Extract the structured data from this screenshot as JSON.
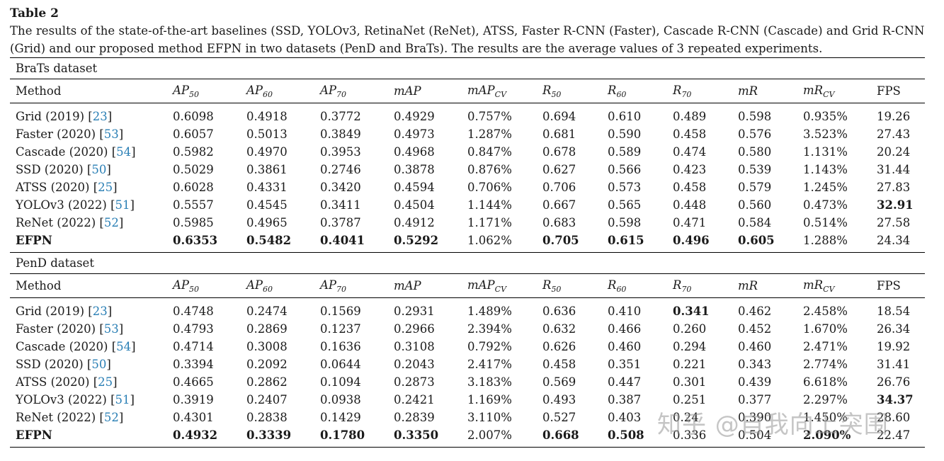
{
  "title": "Table 2",
  "caption": "The results of the state-of-the-art baselines (SSD, YOLOv3, RetinaNet (ReNet), ATSS, Faster R-CNN (Faster), Cascade R-CNN (Cascade) and Grid R-CNN (Grid) and our proposed method EFPN in two datasets (PenD and BraTs). The results are the average values of 3 repeated experiments.",
  "columns": [
    {
      "main": "Method",
      "sub": "",
      "math": false
    },
    {
      "main": "AP",
      "sub": "50",
      "math": true
    },
    {
      "main": "AP",
      "sub": "60",
      "math": true
    },
    {
      "main": "AP",
      "sub": "70",
      "math": true
    },
    {
      "main": "mAP",
      "sub": "",
      "math": true
    },
    {
      "main": "mAP",
      "sub": "CV",
      "math": true
    },
    {
      "main": "R",
      "sub": "50",
      "math": true
    },
    {
      "main": "R",
      "sub": "60",
      "math": true
    },
    {
      "main": "R",
      "sub": "70",
      "math": true
    },
    {
      "main": "mR",
      "sub": "",
      "math": true
    },
    {
      "main": "mR",
      "sub": "CV",
      "math": true
    },
    {
      "main": "FPS",
      "sub": "",
      "math": false
    }
  ],
  "sections": [
    {
      "label": "BraTs dataset",
      "rows": [
        {
          "name": "Grid (2019)",
          "cite": "23",
          "values": [
            "0.6098",
            "0.4918",
            "0.3772",
            "0.4929",
            "0.757%",
            "0.694",
            "0.610",
            "0.489",
            "0.598",
            "0.935%",
            "19.26"
          ],
          "bold": []
        },
        {
          "name": "Faster (2020)",
          "cite": "53",
          "values": [
            "0.6057",
            "0.5013",
            "0.3849",
            "0.4973",
            "1.287%",
            "0.681",
            "0.590",
            "0.458",
            "0.576",
            "3.523%",
            "27.43"
          ],
          "bold": []
        },
        {
          "name": "Cascade (2020)",
          "cite": "54",
          "values": [
            "0.5982",
            "0.4970",
            "0.3953",
            "0.4968",
            "0.847%",
            "0.678",
            "0.589",
            "0.474",
            "0.580",
            "1.131%",
            "20.24"
          ],
          "bold": []
        },
        {
          "name": "SSD (2020)",
          "cite": "50",
          "values": [
            "0.5029",
            "0.3861",
            "0.2746",
            "0.3878",
            "0.876%",
            "0.627",
            "0.566",
            "0.423",
            "0.539",
            "1.143%",
            "31.44"
          ],
          "bold": []
        },
        {
          "name": "ATSS (2020)",
          "cite": "25",
          "values": [
            "0.6028",
            "0.4331",
            "0.3420",
            "0.4594",
            "0.706%",
            "0.706",
            "0.573",
            "0.458",
            "0.579",
            "1.245%",
            "27.83"
          ],
          "bold": []
        },
        {
          "name": "YOLOv3 (2022)",
          "cite": "51",
          "values": [
            "0.5557",
            "0.4545",
            "0.3411",
            "0.4504",
            "1.144%",
            "0.667",
            "0.565",
            "0.448",
            "0.560",
            "0.473%",
            "32.91"
          ],
          "bold": [
            10
          ]
        },
        {
          "name": "ReNet (2022)",
          "cite": "52",
          "values": [
            "0.5985",
            "0.4965",
            "0.3787",
            "0.4912",
            "1.171%",
            "0.683",
            "0.598",
            "0.471",
            "0.584",
            "0.514%",
            "27.58"
          ],
          "bold": []
        },
        {
          "name": "EFPN",
          "cite": "",
          "nameBold": true,
          "values": [
            "0.6353",
            "0.5482",
            "0.4041",
            "0.5292",
            "1.062%",
            "0.705",
            "0.615",
            "0.496",
            "0.605",
            "1.288%",
            "24.34"
          ],
          "bold": [
            0,
            1,
            2,
            3,
            5,
            6,
            7,
            8
          ]
        }
      ]
    },
    {
      "label": "PenD dataset",
      "rows": [
        {
          "name": "Grid (2019)",
          "cite": "23",
          "values": [
            "0.4748",
            "0.2474",
            "0.1569",
            "0.2931",
            "1.489%",
            "0.636",
            "0.410",
            "0.341",
            "0.462",
            "2.458%",
            "18.54"
          ],
          "bold": [
            7
          ]
        },
        {
          "name": "Faster (2020)",
          "cite": "53",
          "values": [
            "0.4793",
            "0.2869",
            "0.1237",
            "0.2966",
            "2.394%",
            "0.632",
            "0.466",
            "0.260",
            "0.452",
            "1.670%",
            "26.34"
          ],
          "bold": []
        },
        {
          "name": "Cascade (2020)",
          "cite": "54",
          "values": [
            "0.4714",
            "0.3008",
            "0.1636",
            "0.3108",
            "0.792%",
            "0.626",
            "0.460",
            "0.294",
            "0.460",
            "2.471%",
            "19.92"
          ],
          "bold": []
        },
        {
          "name": "SSD (2020)",
          "cite": "50",
          "values": [
            "0.3394",
            "0.2092",
            "0.0644",
            "0.2043",
            "2.417%",
            "0.458",
            "0.351",
            "0.221",
            "0.343",
            "2.774%",
            "31.41"
          ],
          "bold": []
        },
        {
          "name": "ATSS (2020)",
          "cite": "25",
          "values": [
            "0.4665",
            "0.2862",
            "0.1094",
            "0.2873",
            "3.183%",
            "0.569",
            "0.447",
            "0.301",
            "0.439",
            "6.618%",
            "26.76"
          ],
          "bold": []
        },
        {
          "name": "YOLOv3 (2022)",
          "cite": "51",
          "values": [
            "0.3919",
            "0.2407",
            "0.0938",
            "0.2421",
            "1.169%",
            "0.493",
            "0.387",
            "0.251",
            "0.377",
            "2.297%",
            "34.37"
          ],
          "bold": [
            10
          ]
        },
        {
          "name": "ReNet (2022)",
          "cite": "52",
          "values": [
            "0.4301",
            "0.2838",
            "0.1429",
            "0.2839",
            "3.110%",
            "0.527",
            "0.403",
            "0.24",
            "0.390",
            "1.450%",
            "28.60"
          ],
          "bold": []
        },
        {
          "name": "EFPN",
          "cite": "",
          "nameBold": true,
          "values": [
            "0.4932",
            "0.3339",
            "0.1780",
            "0.3350",
            "2.007%",
            "0.668",
            "0.508",
            "0.336",
            "0.504",
            "2.090%",
            "22.47"
          ],
          "bold": [
            0,
            1,
            2,
            3,
            5,
            6,
            9
          ]
        }
      ]
    }
  ],
  "watermark": "知乎 @自我向上突围"
}
